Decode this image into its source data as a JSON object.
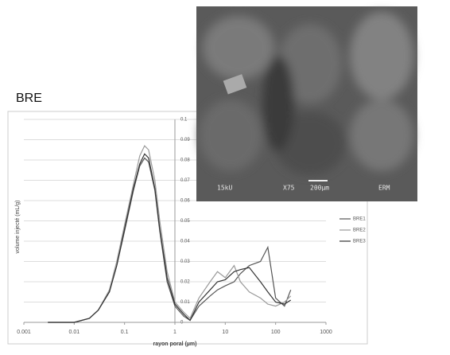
{
  "chart_data": {
    "type": "line",
    "title": "BRE",
    "xlabel": "rayon poral (µm)",
    "ylabel": "volume injecté (mL/g)",
    "x": [
      0.003,
      0.005,
      0.01,
      0.02,
      0.03,
      0.05,
      0.07,
      0.1,
      0.15,
      0.2,
      0.25,
      0.3,
      0.4,
      0.5,
      0.7,
      1,
      1.5,
      2,
      3,
      5,
      7,
      10,
      15,
      20,
      30,
      50,
      70,
      100,
      150,
      200
    ],
    "series": [
      {
        "name": "BRE1",
        "color": "#555555",
        "values": [
          0,
          0,
          0,
          0.002,
          0.006,
          0.015,
          0.028,
          0.045,
          0.065,
          0.077,
          0.081,
          0.079,
          0.065,
          0.045,
          0.02,
          0.008,
          0.003,
          0.001,
          0.008,
          0.013,
          0.016,
          0.018,
          0.02,
          0.024,
          0.028,
          0.03,
          0.037,
          0.012,
          0.008,
          0.016
        ]
      },
      {
        "name": "BRE2",
        "color": "#9a9a9a",
        "values": [
          0,
          0,
          0,
          0.002,
          0.006,
          0.016,
          0.03,
          0.048,
          0.068,
          0.082,
          0.087,
          0.085,
          0.07,
          0.05,
          0.025,
          0.01,
          0.005,
          0.002,
          0.012,
          0.02,
          0.025,
          0.022,
          0.028,
          0.02,
          0.015,
          0.012,
          0.009,
          0.008,
          0.01,
          0.013
        ]
      },
      {
        "name": "BRE3",
        "color": "#333333",
        "values": [
          0,
          0,
          0,
          0.002,
          0.006,
          0.015,
          0.028,
          0.046,
          0.066,
          0.078,
          0.083,
          0.081,
          0.066,
          0.046,
          0.022,
          0.009,
          0.004,
          0.001,
          0.01,
          0.016,
          0.02,
          0.021,
          0.025,
          0.026,
          0.027,
          0.02,
          0.015,
          0.01,
          0.009,
          0.011
        ]
      }
    ],
    "xlim": [
      0.001,
      1000
    ],
    "xticks": [
      0.001,
      0.01,
      0.1,
      1,
      10,
      100,
      1000
    ],
    "xscale": "log",
    "ylim": [
      0,
      0.1
    ],
    "yticks": [
      0,
      0.01,
      0.02,
      0.03,
      0.04,
      0.05,
      0.06,
      0.07,
      0.08,
      0.09,
      0.1
    ],
    "grid": true,
    "legend": "right",
    "annotations": [
      "15kU",
      "X75",
      "200µm",
      "ERM"
    ]
  }
}
